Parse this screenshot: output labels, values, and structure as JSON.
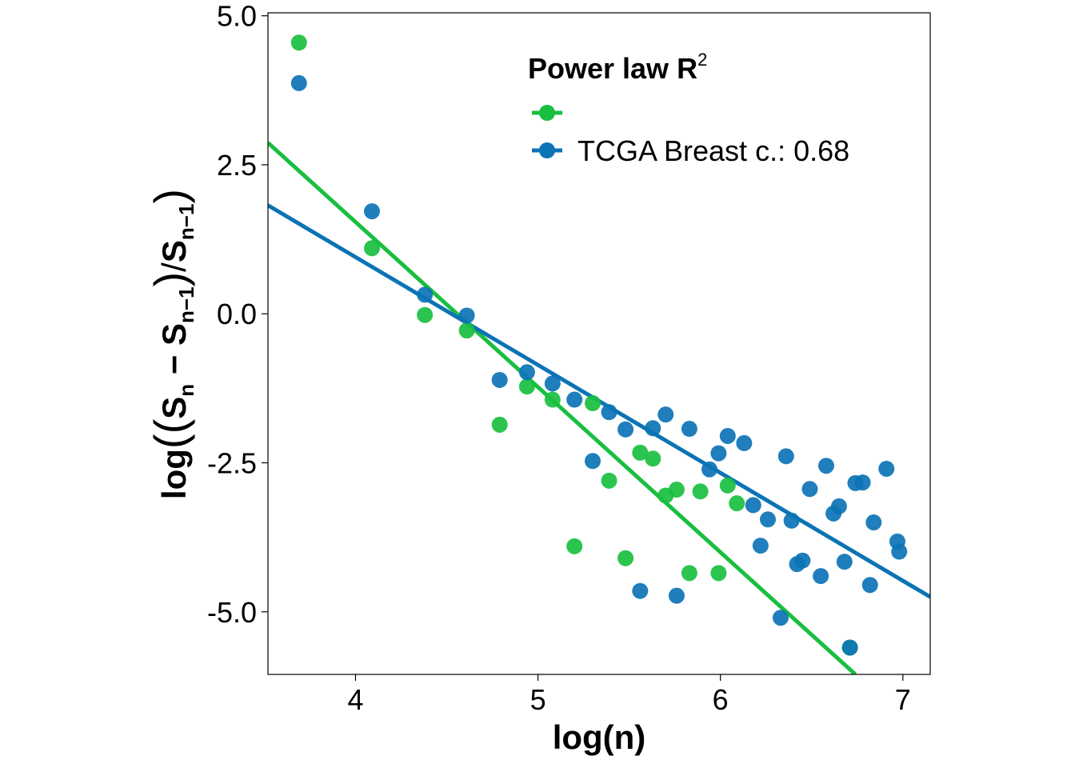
{
  "chart_data": {
    "type": "scatter",
    "xlabel": "log(n)",
    "ylabel_parts": {
      "log": "log",
      "s": "S",
      "n": "n",
      "minus": " − ",
      "nm1": "n−1",
      "slash": "/"
    },
    "xlim": [
      3.52,
      7.15
    ],
    "ylim": [
      -6.05,
      5.05
    ],
    "x_ticks": [
      4,
      5,
      6,
      7
    ],
    "y_ticks": [
      5.0,
      2.5,
      0.0,
      -2.5,
      -5.0
    ],
    "x_tick_labels": [
      "4",
      "5",
      "6",
      "7"
    ],
    "y_tick_labels": [
      "5.0",
      "2.5",
      "0.0",
      "-2.5",
      "-5.0"
    ],
    "legend": {
      "title": "Power law R",
      "title_sup": "2",
      "position": "top-right"
    },
    "series": [
      {
        "name": "",
        "color": "#19bf3f",
        "line": {
          "x": [
            3.52,
            6.74
          ],
          "y": [
            2.87,
            -6.05
          ]
        },
        "x": [
          3.69,
          4.09,
          4.38,
          4.61,
          4.79,
          4.94,
          5.08,
          5.2,
          5.3,
          5.48,
          5.39,
          5.56,
          5.63,
          5.7,
          5.76,
          5.83,
          5.89,
          5.99,
          6.04,
          6.09,
          6.71
        ],
        "y": [
          4.55,
          1.1,
          -0.02,
          -0.28,
          -1.86,
          -1.22,
          -1.44,
          -3.9,
          -1.5,
          -4.1,
          -2.8,
          -2.33,
          -2.43,
          -3.05,
          -2.95,
          -4.35,
          -2.98,
          -4.35,
          -2.88,
          -3.18,
          -5.6
        ]
      },
      {
        "name": "TCGA Breast c.: 0.68",
        "color": "#0c73b5",
        "line": {
          "x": [
            3.52,
            7.15
          ],
          "y": [
            1.82,
            -4.75
          ]
        },
        "x": [
          3.69,
          4.09,
          4.38,
          4.61,
          4.79,
          4.94,
          5.08,
          5.2,
          5.3,
          5.39,
          5.48,
          5.56,
          5.63,
          5.7,
          5.76,
          5.83,
          5.94,
          5.99,
          6.04,
          6.13,
          6.18,
          6.26,
          6.22,
          6.33,
          6.36,
          6.39,
          6.42,
          6.45,
          6.49,
          6.55,
          6.58,
          6.62,
          6.65,
          6.68,
          6.71,
          6.74,
          6.78,
          6.82,
          6.84,
          6.91,
          6.97,
          6.98
        ],
        "y": [
          3.87,
          1.72,
          0.32,
          -0.03,
          -1.11,
          -0.98,
          -1.17,
          -1.44,
          -2.47,
          -1.65,
          -1.94,
          -4.65,
          -1.92,
          -1.69,
          -4.73,
          -1.93,
          -2.61,
          -2.34,
          -2.05,
          -2.17,
          -3.21,
          -3.45,
          -3.89,
          -5.1,
          -2.39,
          -3.47,
          -4.2,
          -4.14,
          -2.94,
          -4.4,
          -2.55,
          -3.35,
          -3.23,
          -4.16,
          -5.6,
          -2.84,
          -2.83,
          -4.55,
          -3.5,
          -2.6,
          -3.82,
          -3.99
        ]
      }
    ]
  }
}
